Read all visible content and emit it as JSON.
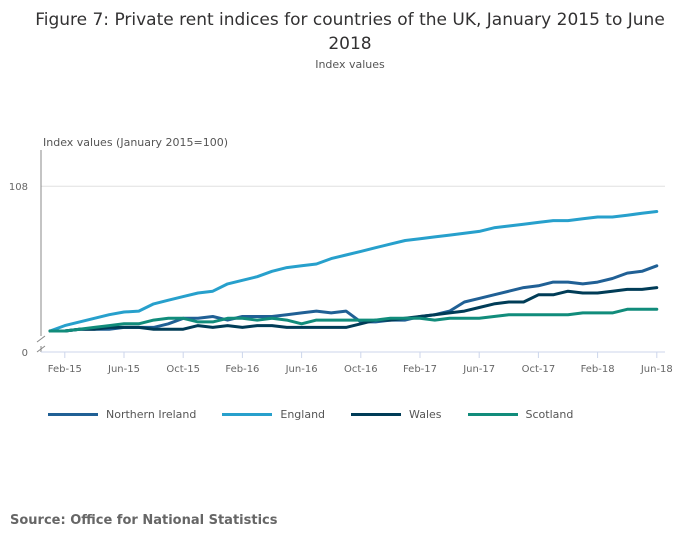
{
  "chart_data": {
    "type": "line",
    "title": "Figure 7: Private rent indices for countries of the UK, January 2015 to June 2018",
    "subtitle": "Index values",
    "ylabel": "Index values (January 2015=100)",
    "xlabel": "",
    "x": [
      "Jan-15",
      "Feb-15",
      "Mar-15",
      "Apr-15",
      "May-15",
      "Jun-15",
      "Jul-15",
      "Aug-15",
      "Sep-15",
      "Oct-15",
      "Nov-15",
      "Dec-15",
      "Jan-16",
      "Feb-16",
      "Mar-16",
      "Apr-16",
      "May-16",
      "Jun-16",
      "Jul-16",
      "Aug-16",
      "Sep-16",
      "Oct-16",
      "Nov-16",
      "Dec-16",
      "Jan-17",
      "Feb-17",
      "Mar-17",
      "Apr-17",
      "May-17",
      "Jun-17",
      "Jul-17",
      "Aug-17",
      "Sep-17",
      "Oct-17",
      "Nov-17",
      "Dec-17",
      "Jan-18",
      "Feb-18",
      "Mar-18",
      "Apr-18",
      "May-18",
      "Jun-18"
    ],
    "x_tick_labels": [
      "Feb-15",
      "Jun-15",
      "Oct-15",
      "Feb-16",
      "Jun-16",
      "Oct-16",
      "Feb-17",
      "Jun-17",
      "Oct-17",
      "Feb-18",
      "Jun-18"
    ],
    "y_tick_labels": [
      "0",
      "108"
    ],
    "ylim": [
      100,
      108
    ],
    "y_axis_break": true,
    "grid": true,
    "legend_position": "bottom",
    "series": [
      {
        "name": "Northern Ireland",
        "color": "#206095",
        "values": [
          100,
          100,
          100.1,
          100.1,
          100.1,
          100.2,
          100.2,
          100.2,
          100.4,
          100.7,
          100.7,
          100.8,
          100.6,
          100.8,
          100.8,
          100.8,
          100.9,
          101.0,
          101.1,
          101.0,
          101.1,
          100.5,
          100.5,
          100.6,
          100.6,
          100.8,
          100.9,
          101.1,
          101.6,
          101.8,
          102.0,
          102.2,
          102.4,
          102.5,
          102.7,
          102.7,
          102.6,
          102.7,
          102.9,
          103.2,
          103.3,
          103.6
        ]
      },
      {
        "name": "England",
        "color": "#27a0cc",
        "values": [
          100,
          100.3,
          100.5,
          100.7,
          100.9,
          101.05,
          101.1,
          101.5,
          101.7,
          101.9,
          102.1,
          102.2,
          102.6,
          102.8,
          103.0,
          103.3,
          103.5,
          103.6,
          103.7,
          104.0,
          104.2,
          104.4,
          104.6,
          104.8,
          105.0,
          105.1,
          105.2,
          105.3,
          105.4,
          105.5,
          105.7,
          105.8,
          105.9,
          106.0,
          106.1,
          106.1,
          106.2,
          106.3,
          106.3,
          106.4,
          106.5,
          106.6
        ]
      },
      {
        "name": "Wales",
        "color": "#003c57",
        "values": [
          100,
          100,
          100.1,
          100.1,
          100.2,
          100.2,
          100.2,
          100.1,
          100.1,
          100.1,
          100.3,
          100.2,
          100.3,
          100.2,
          100.3,
          100.3,
          100.2,
          100.2,
          100.2,
          100.2,
          100.2,
          100.4,
          100.6,
          100.6,
          100.7,
          100.8,
          100.9,
          101.0,
          101.1,
          101.3,
          101.5,
          101.6,
          101.6,
          102.0,
          102.0,
          102.2,
          102.1,
          102.1,
          102.2,
          102.3,
          102.3,
          102.4
        ]
      },
      {
        "name": "Scotland",
        "color": "#118c7b",
        "values": [
          100,
          100,
          100.1,
          100.2,
          100.3,
          100.4,
          100.4,
          100.6,
          100.7,
          100.7,
          100.5,
          100.5,
          100.7,
          100.7,
          100.6,
          100.7,
          100.6,
          100.4,
          100.6,
          100.6,
          100.6,
          100.6,
          100.6,
          100.7,
          100.7,
          100.7,
          100.6,
          100.7,
          100.7,
          100.7,
          100.8,
          100.9,
          100.9,
          100.9,
          100.9,
          100.9,
          101.0,
          101.0,
          101.0,
          101.2,
          101.2,
          101.2
        ]
      }
    ]
  },
  "source": "Source: Office for National Statistics"
}
